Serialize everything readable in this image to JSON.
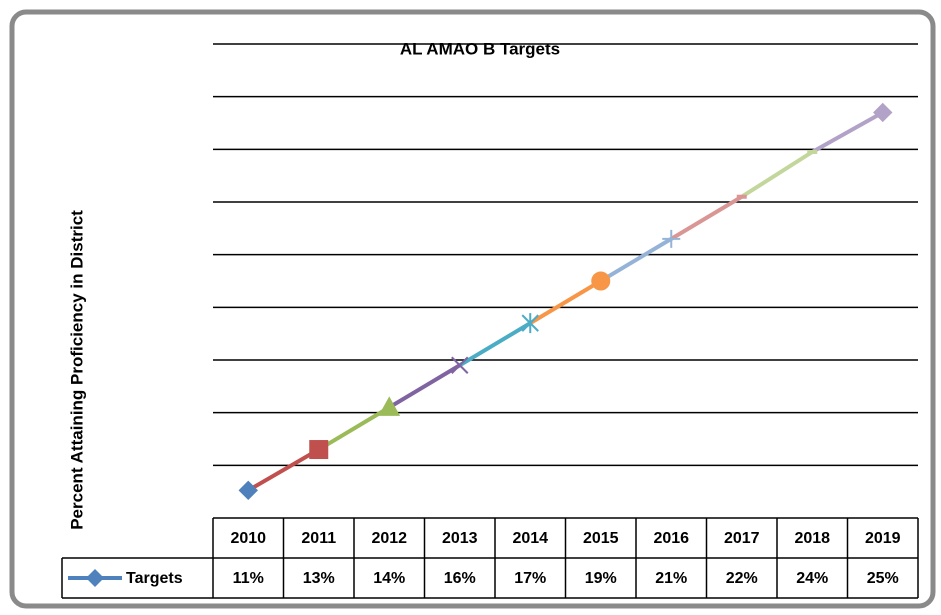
{
  "chart_data": {
    "type": "line",
    "title": "AL AMAO B Targets",
    "ylabel": "Percent Attaining Proficiency in District",
    "categories": [
      "2010",
      "2011",
      "2012",
      "2013",
      "2014",
      "2015",
      "2016",
      "2017",
      "2018",
      "2019"
    ],
    "series": [
      {
        "name": "Targets",
        "color": "#4f81bd",
        "values": [
          11.05,
          12.6,
          14.2,
          15.8,
          17.4,
          19.0,
          20.6,
          22.2,
          23.9,
          25.4
        ],
        "value_labels": [
          "11%",
          "13%",
          "14%",
          "16%",
          "17%",
          "19%",
          "21%",
          "22%",
          "24%",
          "25%"
        ],
        "point_colors": [
          "#4f81bd",
          "#c0504d",
          "#9bbb59",
          "#8064a2",
          "#4bacc6",
          "#f79646",
          "#95b3d7",
          "#d99694",
          "#c3d69b",
          "#b3a2c7"
        ],
        "markers": [
          "diamond",
          "square",
          "triangle",
          "x",
          "star",
          "circle",
          "plus",
          "dash",
          "dash",
          "diamond"
        ]
      }
    ],
    "ylim": [
      10,
      28
    ],
    "yticks": [
      12,
      14,
      16,
      18,
      20,
      22,
      24,
      26,
      28
    ],
    "grid": true,
    "data_table": true
  }
}
